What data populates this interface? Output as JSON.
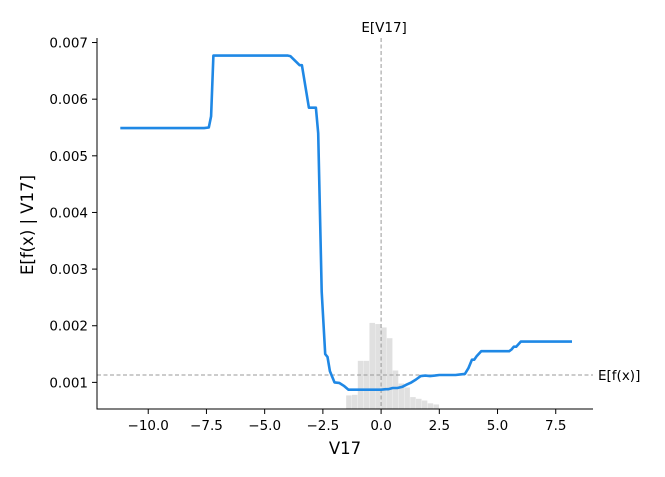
{
  "chart_data": {
    "type": "line",
    "title": "",
    "xlabel": "V17",
    "ylabel": "E[f(x) | V17]",
    "xlim": [
      -12.2,
      9.1
    ],
    "ylim": [
      0.00053,
      0.00708
    ],
    "xticks": [
      -10,
      -7.5,
      -5,
      -2.5,
      0,
      2.5,
      5,
      7.5
    ],
    "xtick_labels": [
      "−10.0",
      "−7.5",
      "−5.0",
      "−2.5",
      "0.0",
      "2.5",
      "5.0",
      "7.5"
    ],
    "yticks": [
      0.001,
      0.002,
      0.003,
      0.004,
      0.005,
      0.006,
      0.007
    ],
    "ytick_labels": [
      "0.001",
      "0.002",
      "0.003",
      "0.004",
      "0.005",
      "0.006",
      "0.007"
    ],
    "grid": false,
    "expected_value_x": 0.0,
    "expected_value_x_label": "E[V17]",
    "expected_value_y": 0.00113,
    "expected_value_y_label": "E[f(x)]",
    "series": [
      {
        "color": "#1f88e5",
        "x": [
          -11.2,
          -7.6,
          -7.4,
          -7.3,
          -7.2,
          -4.0,
          -3.9,
          -3.5,
          -3.4,
          -3.1,
          -2.8,
          -2.7,
          -2.55,
          -2.4,
          -2.3,
          -2.2,
          -2.0,
          -1.8,
          -1.6,
          -1.4,
          -1.2,
          -1.0,
          -0.8,
          -0.6,
          -0.4,
          -0.2,
          0.0,
          0.2,
          0.3,
          0.5,
          0.7,
          0.9,
          1.1,
          1.3,
          1.5,
          1.7,
          1.9,
          2.1,
          2.3,
          2.5,
          2.8,
          3.0,
          3.2,
          3.4,
          3.6,
          3.75,
          3.9,
          4.0,
          4.1,
          4.3,
          4.6,
          5.0,
          5.5,
          5.6,
          5.7,
          5.8,
          6.0,
          6.5,
          7.0,
          7.5,
          8.2
        ],
        "y": [
          0.00549,
          0.00549,
          0.0055,
          0.0057,
          0.00677,
          0.00677,
          0.00676,
          0.0066,
          0.0066,
          0.00585,
          0.00585,
          0.0054,
          0.0026,
          0.0015,
          0.00145,
          0.0012,
          0.001,
          0.00099,
          0.00094,
          0.00087,
          0.00087,
          0.00087,
          0.00087,
          0.00087,
          0.00087,
          0.00087,
          0.00087,
          0.00088,
          0.00088,
          0.0009,
          0.0009,
          0.00092,
          0.00096,
          0.001,
          0.00105,
          0.00111,
          0.00112,
          0.00111,
          0.00112,
          0.00113,
          0.00113,
          0.00113,
          0.00113,
          0.00114,
          0.00115,
          0.00125,
          0.0014,
          0.0014,
          0.00146,
          0.00155,
          0.00155,
          0.00155,
          0.00155,
          0.00158,
          0.00163,
          0.00163,
          0.00172,
          0.00172,
          0.00172,
          0.00172,
          0.00172
        ]
      }
    ],
    "histogram": {
      "color": "#cccccc",
      "bin_edges": [
        -1.5,
        -1.25,
        -1.0,
        -0.75,
        -0.5,
        -0.25,
        0.0,
        0.25,
        0.5,
        0.75,
        1.0,
        1.25,
        1.5,
        1.75,
        2.0,
        2.25,
        2.5
      ],
      "counts": [
        0.00077,
        0.00078,
        0.00138,
        0.00138,
        0.00205,
        0.00203,
        0.00197,
        0.00178,
        0.00121,
        0.00098,
        0.00091,
        0.00074,
        0.00071,
        0.00068,
        0.00063,
        0.00061
      ]
    }
  }
}
